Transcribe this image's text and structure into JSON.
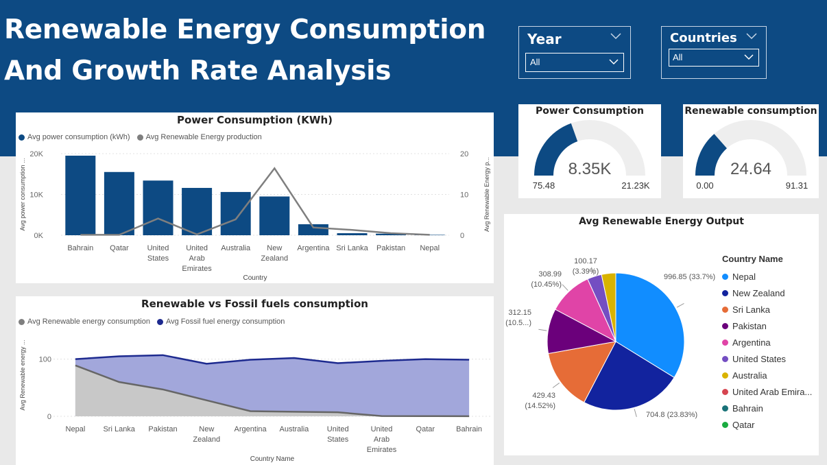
{
  "header": {
    "title_line1": "Renewable Energy Consumption",
    "title_line2": "And Growth Rate Analysis"
  },
  "slicers": {
    "year": {
      "label": "Year",
      "value": "All"
    },
    "countries": {
      "label": "Countries",
      "value": "All"
    }
  },
  "colors": {
    "header_blue": "#0d4a83",
    "bar_blue": "#0d4a83",
    "line_gray": "#7f7f7f",
    "fossil_line": "#1d2a8f",
    "fossil_fill": "#a2a7db",
    "renew_fill": "#c8c8c8"
  },
  "kpis": {
    "power": {
      "title": "Power Consumption",
      "value": "8.35K",
      "min": "75.48",
      "max": "21.23K",
      "fraction": 0.391
    },
    "renewable": {
      "title": "Renewable consumption",
      "value": "24.64",
      "min": "0.00",
      "max": "91.31",
      "fraction": 0.27
    }
  },
  "chart_data": [
    {
      "type": "bar",
      "title": "Power Consumption (KWh)",
      "xlabel": "Country",
      "ylabel": "Avg power consumption ...",
      "y2label": "Avg Renewable Energy p...",
      "legend": "top-left",
      "categories": [
        "Bahrain",
        "Qatar",
        "United States",
        "United Arab Emirates",
        "Australia",
        "New Zealand",
        "Argentina",
        "Sri Lanka",
        "Pakistan",
        "Nepal"
      ],
      "category_lines": [
        [
          "Bahrain"
        ],
        [
          "Qatar"
        ],
        [
          "United",
          "States"
        ],
        [
          "United",
          "Arab",
          "Emirates"
        ],
        [
          "Australia"
        ],
        [
          "New",
          "Zealand"
        ],
        [
          "Argentina"
        ],
        [
          "Sri Lanka"
        ],
        [
          "Pakistan"
        ],
        [
          "Nepal"
        ]
      ],
      "ylim": [
        0,
        20000
      ],
      "y2lim": [
        0,
        20
      ],
      "yticks": [
        {
          "v": 0,
          "label": "0K"
        },
        {
          "v": 10000,
          "label": "10K"
        },
        {
          "v": 20000,
          "label": "20K"
        }
      ],
      "y2ticks": [
        {
          "v": 0,
          "label": "0"
        },
        {
          "v": 10,
          "label": "10"
        },
        {
          "v": 20,
          "label": "20"
        }
      ],
      "series": [
        {
          "name": "Avg power consumption (kWh)",
          "type": "bar",
          "values": [
            19500,
            15500,
            13400,
            11600,
            10600,
            9500,
            2700,
            500,
            380,
            100
          ]
        },
        {
          "name": "Avg Renewable Energy production",
          "type": "line",
          "axis": "secondary",
          "values": [
            0.1,
            0.1,
            4.1,
            0.2,
            3.9,
            16.4,
            1.9,
            1.3,
            0.5,
            0.1
          ]
        }
      ]
    },
    {
      "type": "area",
      "title": "Renewable vs Fossil fuels consumption",
      "xlabel": "Country Name",
      "ylabel": "Avg Renewable energy ...",
      "legend": "top-left",
      "categories": [
        "Nepal",
        "Sri Lanka",
        "Pakistan",
        "New Zealand",
        "Argentina",
        "Australia",
        "United States",
        "United Arab Emirates",
        "Qatar",
        "Bahrain"
      ],
      "category_lines": [
        [
          "Nepal"
        ],
        [
          "Sri Lanka"
        ],
        [
          "Pakistan"
        ],
        [
          "New",
          "Zealand"
        ],
        [
          "Argentina"
        ],
        [
          "Australia"
        ],
        [
          "United",
          "States"
        ],
        [
          "United",
          "Arab",
          "Emirates"
        ],
        [
          "Qatar"
        ],
        [
          "Bahrain"
        ]
      ],
      "ylim": [
        0,
        120
      ],
      "yticks": [
        0,
        100
      ],
      "series": [
        {
          "name": "Avg Renewable energy consumption",
          "values": [
            89,
            60,
            47,
            28,
            9,
            8,
            7,
            0.5,
            0.3,
            0.2
          ]
        },
        {
          "name": "Avg Fossil fuel energy consumption",
          "values": [
            100,
            105,
            107,
            92,
            99,
            102,
            93,
            97,
            100,
            99
          ]
        }
      ]
    },
    {
      "type": "pie",
      "title": "Avg Renewable Energy Output",
      "legend_title": "Country Name",
      "legend": "right",
      "slices": [
        {
          "name": "Nepal",
          "value": 996.85,
          "label": "996.85 (33.7%)",
          "color": "#118dff"
        },
        {
          "name": "New Zealand",
          "value": 704.8,
          "label": "704.8 (23.83%)",
          "color": "#12239e"
        },
        {
          "name": "Sri Lanka",
          "value": 429.43,
          "label": "429.43\n(14.52%)",
          "color": "#e66c37"
        },
        {
          "name": "Pakistan",
          "value": 312.15,
          "label": "312.15\n(10.5...)",
          "color": "#6b007b"
        },
        {
          "name": "Argentina",
          "value": 308.99,
          "label": "308.99\n(10.45%)",
          "color": "#e044a7"
        },
        {
          "name": "United States",
          "value": 100.17,
          "label": "100.17\n(3.39%)",
          "color": "#744ec2"
        },
        {
          "name": "Australia",
          "value": 99.0,
          "label": "",
          "color": "#d9b300"
        }
      ],
      "legend_items": [
        {
          "name": "Nepal",
          "color": "#118dff"
        },
        {
          "name": "New Zealand",
          "color": "#12239e"
        },
        {
          "name": "Sri Lanka",
          "color": "#e66c37"
        },
        {
          "name": "Pakistan",
          "color": "#6b007b"
        },
        {
          "name": "Argentina",
          "color": "#e044a7"
        },
        {
          "name": "United States",
          "color": "#744ec2"
        },
        {
          "name": "Australia",
          "color": "#d9b300"
        },
        {
          "name": "United Arab Emira...",
          "color": "#d64550"
        },
        {
          "name": "Bahrain",
          "color": "#197278"
        },
        {
          "name": "Qatar",
          "color": "#1aab40"
        }
      ]
    }
  ]
}
